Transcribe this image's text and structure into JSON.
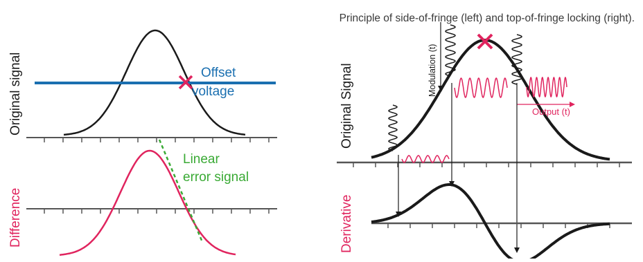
{
  "caption": "Principle of side-of-fringe (left) and top-of-fringe locking (right).",
  "left_panel": {
    "top_label": "Original signal",
    "offset_label_line1": "Offset",
    "offset_label_line2": "voltage",
    "bottom_label": "Difference",
    "error_label_line1": "Linear",
    "error_label_line2": "error signal"
  },
  "right_panel": {
    "top_label": "Original Signal",
    "modulation_label": "Modulation (t)",
    "output_label": "Output (t)",
    "bottom_label": "Derivative"
  },
  "colors": {
    "curve": "#1a1a1a",
    "offset_line": "#1a6fb0",
    "marker": "#e0245e",
    "difference": "#e0245e",
    "error_tangent": "#3aaa35",
    "axis": "#555555"
  }
}
